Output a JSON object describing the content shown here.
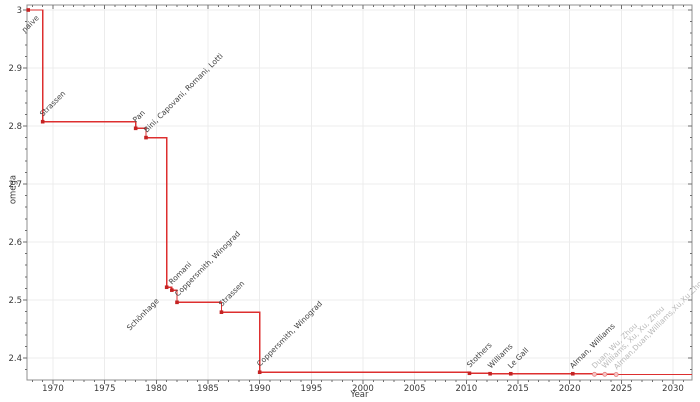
{
  "chart_data": {
    "type": "line",
    "subtype": "step-post",
    "title": "",
    "xlabel": "Year",
    "ylabel": "omega",
    "xlim": [
      1967.45,
      2031.85
    ],
    "ylim": [
      2.362,
      3.009
    ],
    "x_major_ticks": [
      1970,
      1975,
      1980,
      1985,
      1990,
      1995,
      2000,
      2005,
      2010,
      2015,
      2020,
      2025,
      2030
    ],
    "x_minor_step_years": 1,
    "y_major_ticks": [
      2.4,
      2.5,
      2.6,
      2.7,
      2.8,
      2.9,
      3
    ],
    "y_minor_step": 0.02,
    "grid": true,
    "legend": false,
    "line_extends_to_right_edge": true,
    "points": [
      {
        "year": 1967.6,
        "omega": 3.0,
        "label": "naive",
        "provisional": false
      },
      {
        "year": 1969,
        "omega": 2.8074,
        "label": "Strassen",
        "provisional": false
      },
      {
        "year": 1978,
        "omega": 2.796,
        "label": "Pan",
        "provisional": false
      },
      {
        "year": 1979,
        "omega": 2.78,
        "label": "Bini, Capovani, Romani, Lotti",
        "provisional": false
      },
      {
        "year": 1981,
        "omega": 2.522,
        "label": "Schönhage",
        "provisional": false
      },
      {
        "year": 1981.5,
        "omega": 2.517,
        "label": "Romani",
        "provisional": false
      },
      {
        "year": 1982,
        "omega": 2.496,
        "label": "Coppersmith, Winograd",
        "provisional": false
      },
      {
        "year": 1986.3,
        "omega": 2.479,
        "label": "Strassen",
        "provisional": false
      },
      {
        "year": 1990,
        "omega": 2.3755,
        "label": "Coppersmith, Winograd",
        "provisional": false
      },
      {
        "year": 2010.3,
        "omega": 2.3737,
        "label": "Stothers",
        "provisional": false
      },
      {
        "year": 2012.3,
        "omega": 2.3729,
        "label": "Williams",
        "provisional": false
      },
      {
        "year": 2014.3,
        "omega": 2.37286,
        "label": "Le Gall",
        "provisional": false
      },
      {
        "year": 2020.3,
        "omega": 2.37286,
        "label": "Alman, Williams",
        "provisional": false
      },
      {
        "year": 2022.4,
        "omega": 2.37188,
        "label": "Duan, Wu, Zhou",
        "provisional": true
      },
      {
        "year": 2023.4,
        "omega": 2.37187,
        "label": "Williams, Xu, Xu, Zhou",
        "provisional": true
      },
      {
        "year": 2024.5,
        "omega": 2.37155,
        "label": "Alman,Duan,Williams,Xu,Xu,Zhou",
        "provisional": true
      }
    ]
  },
  "colors": {
    "line": "#dd2f2f",
    "marker": "#c42323",
    "marker_provisional_fill": "#f6c6c6",
    "marker_provisional_edge": "#e57f7f",
    "grid": "#ececec",
    "spine": "#8f8f8f",
    "tick": "#6e6e6e",
    "text": "#3a3a3a",
    "annotation": "#3f3f3f",
    "annotation_gray": "#b9b9b9"
  }
}
